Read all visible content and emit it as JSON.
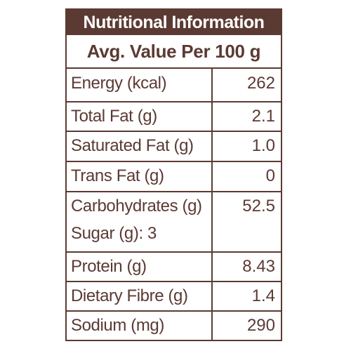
{
  "title": "Nutritional Information",
  "subtitle": "Avg. Value Per 100 g",
  "rows": [
    {
      "name": "Energy (kcal)",
      "value": "262"
    },
    {
      "name": "Total Fat (g)",
      "value": "2.1"
    },
    {
      "name": "Saturated Fat (g)",
      "value": "1.0"
    },
    {
      "name": "Trans Fat (g)",
      "value": "0"
    },
    {
      "name": "Carbohydrates (g)",
      "value": "52.5",
      "sub": "Sugar (g): 3"
    },
    {
      "name": "Protein (g)",
      "value": "8.43"
    },
    {
      "name": "Dietary Fibre (g)",
      "value": "1.4"
    },
    {
      "name": "Sodium (mg)",
      "value": "290"
    }
  ],
  "colors": {
    "brand": "#5b3a33"
  }
}
